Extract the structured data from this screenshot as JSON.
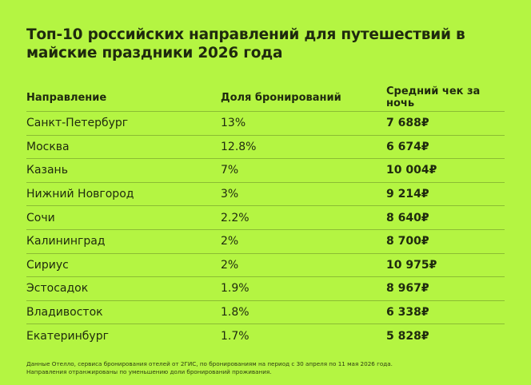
{
  "title": "Топ-10 российских направлений для путешествий в майские праздники 2026 года",
  "chart_data": {
    "type": "table",
    "title": "Топ-10 российских направлений для путешествий в майские праздники 2026 года",
    "columns": [
      "Направление",
      "Доля бронирований",
      "Средний чек за ночь"
    ],
    "rows": [
      {
        "destination": "Санкт-Петербург",
        "share": "13%",
        "avg_check": "7 688₽"
      },
      {
        "destination": "Москва",
        "share": "12.8%",
        "avg_check": "6 674₽"
      },
      {
        "destination": "Казань",
        "share": "7%",
        "avg_check": "10 004₽"
      },
      {
        "destination": "Нижний Новгород",
        "share": "3%",
        "avg_check": "9 214₽"
      },
      {
        "destination": "Сочи",
        "share": "2.2%",
        "avg_check": "8 640₽"
      },
      {
        "destination": "Калининград",
        "share": "2%",
        "avg_check": "8 700₽"
      },
      {
        "destination": "Сириус",
        "share": "2%",
        "avg_check": "10 975₽"
      },
      {
        "destination": "Эстосадок",
        "share": "1.9%",
        "avg_check": "8 967₽"
      },
      {
        "destination": "Владивосток",
        "share": "1.8%",
        "avg_check": "6 338₽"
      },
      {
        "destination": "Екатеринбург",
        "share": "1.7%",
        "avg_check": "5 828₽"
      }
    ]
  },
  "footnote": {
    "line1": "Данные Отелло, сервиса бронирования отелей от 2ГИС, по бронированиям на период с 30 апреля по 11 мая 2026 года.",
    "line2": "Направления отранжированы по уменьшению доли бронирований проживания."
  },
  "colors": {
    "background": "#b4f542",
    "text": "#1f2a0e"
  }
}
